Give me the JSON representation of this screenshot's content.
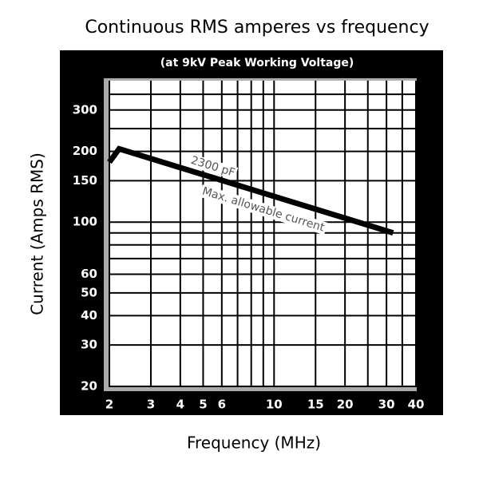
{
  "chart_data": {
    "type": "line",
    "title": "Continuous RMS amperes vs frequency",
    "subtitle": "(at 9kV Peak Working Voltage)",
    "x_label": "Frequency (MHz)",
    "y_label": "Current (Amps RMS)",
    "log_x": true,
    "log_y": true,
    "grid": true,
    "xlim": [
      2,
      40
    ],
    "ylim": [
      20,
      400
    ],
    "xticks": [
      2,
      3,
      4,
      5,
      6,
      10,
      15,
      20,
      30,
      40
    ],
    "yticks": [
      20,
      30,
      40,
      50,
      60,
      100,
      150,
      200,
      300
    ],
    "x_minor_grid": [
      7,
      8,
      9,
      25,
      35
    ],
    "y_minor_grid": [
      70,
      80,
      90,
      250,
      350
    ],
    "series": [
      {
        "color": "#000000",
        "x": [
          2,
          2.2,
          32
        ],
        "values": [
          180,
          205,
          90
        ]
      }
    ],
    "annotations": [
      {
        "text": "2300 pF",
        "x": 5.5,
        "y": 172
      },
      {
        "text": "Max. allowable current",
        "x": 9,
        "y": 113
      }
    ]
  }
}
